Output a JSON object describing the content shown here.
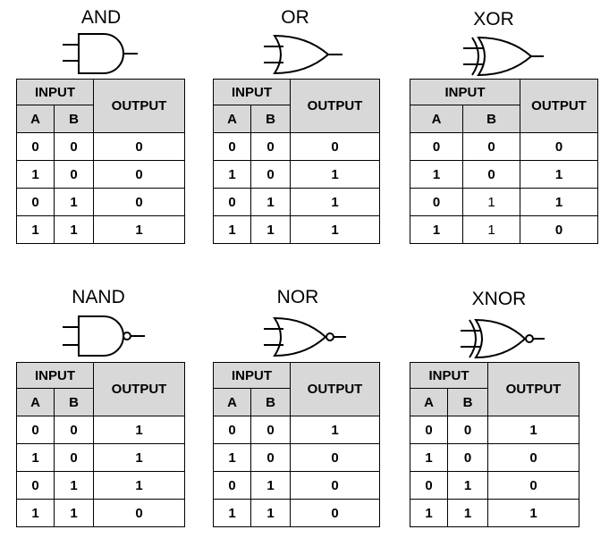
{
  "headers": {
    "input": "INPUT",
    "output": "OUTPUT",
    "a": "A",
    "b": "B"
  },
  "gates": [
    {
      "name": "AND",
      "rows": [
        [
          "0",
          "0",
          "0"
        ],
        [
          "1",
          "0",
          "0"
        ],
        [
          "0",
          "1",
          "0"
        ],
        [
          "1",
          "1",
          "1"
        ]
      ]
    },
    {
      "name": "OR",
      "rows": [
        [
          "0",
          "0",
          "0"
        ],
        [
          "1",
          "0",
          "1"
        ],
        [
          "0",
          "1",
          "1"
        ],
        [
          "1",
          "1",
          "1"
        ]
      ]
    },
    {
      "name": "XOR",
      "rows": [
        [
          "0",
          "0",
          "0"
        ],
        [
          "1",
          "0",
          "1"
        ],
        [
          "0",
          "1",
          "1"
        ],
        [
          "1",
          "1",
          "0"
        ]
      ]
    },
    {
      "name": "NAND",
      "rows": [
        [
          "0",
          "0",
          "1"
        ],
        [
          "1",
          "0",
          "1"
        ],
        [
          "0",
          "1",
          "1"
        ],
        [
          "1",
          "1",
          "0"
        ]
      ]
    },
    {
      "name": "NOR",
      "rows": [
        [
          "0",
          "0",
          "1"
        ],
        [
          "1",
          "0",
          "0"
        ],
        [
          "0",
          "1",
          "0"
        ],
        [
          "1",
          "1",
          "0"
        ]
      ]
    },
    {
      "name": "XNOR",
      "rows": [
        [
          "0",
          "0",
          "1"
        ],
        [
          "1",
          "0",
          "0"
        ],
        [
          "0",
          "1",
          "0"
        ],
        [
          "1",
          "1",
          "1"
        ]
      ]
    }
  ]
}
